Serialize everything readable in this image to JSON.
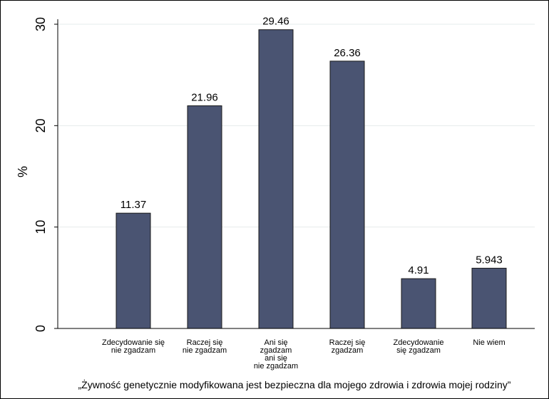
{
  "chart_data": {
    "type": "bar",
    "categories": [
      [
        "Zdecydowanie się",
        "nie zgadzam"
      ],
      [
        "Raczej się",
        "nie zgadzam"
      ],
      [
        "Ani się",
        "zgadzam",
        "ani się",
        "nie zgadzam"
      ],
      [
        "Raczej się",
        "zgadzam"
      ],
      [
        "Zdecydowanie",
        "się zgadzam"
      ],
      [
        "Nie wiem"
      ]
    ],
    "values": [
      11.37,
      21.96,
      29.46,
      26.36,
      4.91,
      5.943
    ],
    "value_labels": [
      "11.37",
      "21.96",
      "29.46",
      "26.36",
      "4.91",
      "5.943"
    ],
    "ylabel": "%",
    "xlabel": "„Żywność genetycznie modyfikowana jest bezpieczna dla mojego zdrowia i zdrowia mojej rodziny”",
    "ylim": [
      0,
      30
    ],
    "yticks": [
      0,
      10,
      20,
      30
    ],
    "grid": true,
    "colors": {
      "bar": "#4a5472",
      "bar_edge": "#1a1a1a",
      "grid": "#e6ecec",
      "axis": "#000000"
    }
  }
}
